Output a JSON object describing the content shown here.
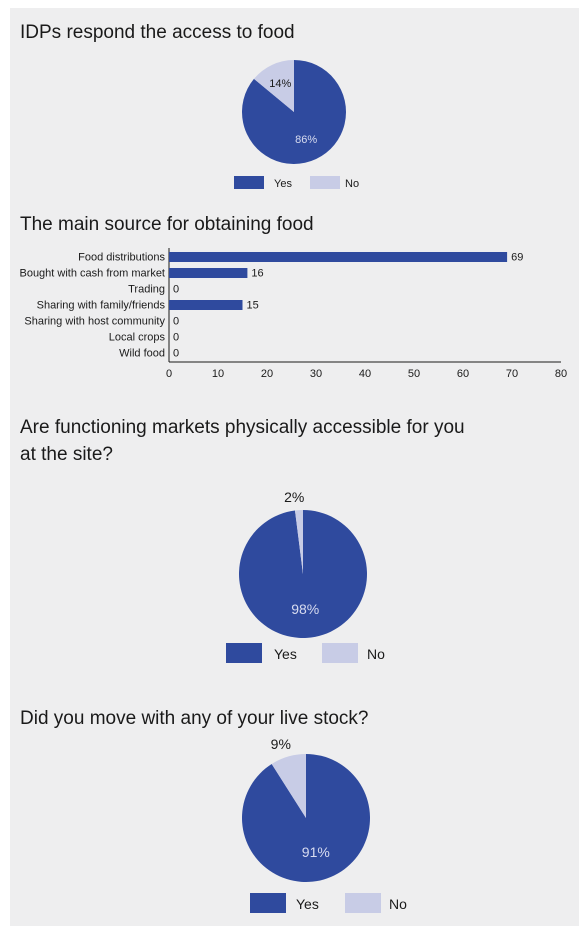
{
  "colors": {
    "yes": "#2f4a9e",
    "no": "#c8cce6",
    "panel": "#eeeeef",
    "axis": "#1a1a1a"
  },
  "chart_data": [
    {
      "type": "pie",
      "title": "IDPs respond the access to food",
      "categories": [
        "Yes",
        "No"
      ],
      "values": [
        86,
        14
      ],
      "labels": [
        "86%",
        "14%"
      ],
      "legend": [
        "Yes",
        "No"
      ],
      "legend_position": "bottom"
    },
    {
      "type": "bar",
      "orientation": "horizontal",
      "title": "The main source for obtaining food",
      "categories": [
        "Food distributions",
        "Bought with cash from market",
        "Trading",
        "Sharing with family/friends",
        "Sharing with host community",
        "Local crops",
        "Wild food"
      ],
      "values": [
        69,
        16,
        0,
        15,
        0,
        0,
        0
      ],
      "value_labels": [
        "69",
        "16",
        "0",
        "15",
        "0",
        "0",
        "0"
      ],
      "xlim": [
        0,
        80
      ],
      "ticks": [
        "0",
        "10",
        "20",
        "30",
        "40",
        "50",
        "60",
        "70",
        "80"
      ],
      "grid": false
    },
    {
      "type": "pie",
      "title": "Are functioning markets physically accessible for you at the site?",
      "title_lines": [
        "Are functioning markets physically accessible for you",
        "at the site?"
      ],
      "categories": [
        "Yes",
        "No"
      ],
      "values": [
        98,
        2
      ],
      "labels": [
        "98%",
        "2%"
      ],
      "legend": [
        "Yes",
        "No"
      ],
      "legend_position": "bottom"
    },
    {
      "type": "pie",
      "title": "Did you move with any of your live stock?",
      "categories": [
        "Yes",
        "No"
      ],
      "values": [
        91,
        9
      ],
      "labels": [
        "91%",
        "9%"
      ],
      "legend": [
        "Yes",
        "No"
      ],
      "legend_position": "bottom"
    }
  ]
}
